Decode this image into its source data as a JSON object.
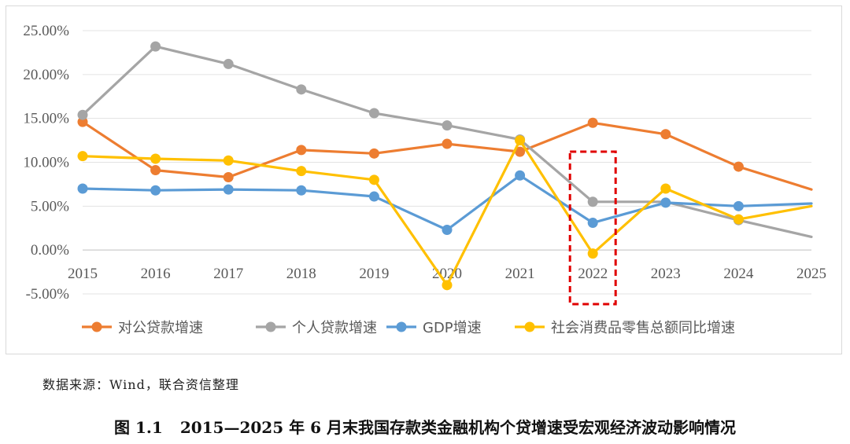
{
  "chart_data": {
    "type": "line",
    "title": "",
    "xlabel": "",
    "ylabel": "",
    "categories": [
      "2015",
      "2016",
      "2017",
      "2018",
      "2019",
      "2020",
      "2021",
      "2022",
      "2023",
      "2024",
      "2025"
    ],
    "y_ticks": [
      "25.00%",
      "20.00%",
      "15.00%",
      "10.00%",
      "5.00%",
      "0.00%",
      "-5.00%"
    ],
    "y_tick_values": [
      25,
      20,
      15,
      10,
      5,
      0,
      -5
    ],
    "ylim": [
      -5,
      25
    ],
    "grid": "horizontal",
    "legend_position": "bottom",
    "highlight_category": "2022",
    "highlight_color": "#e00000",
    "series": [
      {
        "name": "对公贷款增速",
        "color": "#ED7D31",
        "values": [
          14.6,
          9.1,
          8.3,
          11.4,
          11.0,
          12.1,
          11.2,
          14.5,
          13.2,
          9.5,
          6.9
        ],
        "markers": [
          true,
          true,
          true,
          true,
          true,
          true,
          true,
          true,
          true,
          true,
          false
        ]
      },
      {
        "name": "个人贷款增速",
        "color": "#A5A5A5",
        "values": [
          15.4,
          23.2,
          21.2,
          18.3,
          15.6,
          14.2,
          12.6,
          5.5,
          5.5,
          3.4,
          1.5
        ],
        "markers": [
          true,
          true,
          true,
          true,
          true,
          true,
          true,
          true,
          false,
          true,
          false
        ]
      },
      {
        "name": "GDP增速",
        "color": "#5B9BD5",
        "values": [
          7.0,
          6.8,
          6.9,
          6.8,
          6.1,
          2.3,
          8.5,
          3.1,
          5.4,
          5.0,
          5.3
        ],
        "markers": [
          true,
          true,
          true,
          true,
          true,
          true,
          true,
          true,
          true,
          true,
          false
        ]
      },
      {
        "name": "社会消费品零售总额同比增速",
        "color": "#FFC000",
        "values": [
          10.7,
          10.4,
          10.2,
          9.0,
          8.0,
          -4.0,
          12.5,
          -0.4,
          7.0,
          3.5,
          5.0
        ],
        "markers": [
          true,
          true,
          true,
          true,
          true,
          true,
          true,
          true,
          true,
          true,
          false
        ]
      }
    ]
  },
  "source_note": "数据来源：Wind，联合资信整理",
  "caption": {
    "number": "图 1.1",
    "text": "2015—2025 年 6 月末我国存款类金融机构个贷增速受宏观经济波动影响情况"
  }
}
